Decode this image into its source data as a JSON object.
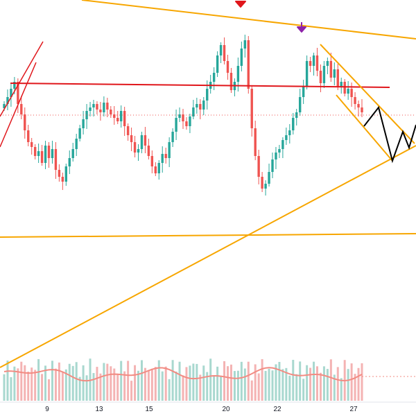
{
  "chart_data": {
    "type": "candlestick",
    "x_ticks": [
      "9",
      "13",
      "15",
      "20",
      "22",
      "27"
    ],
    "colors": {
      "up": "#26a69a",
      "down": "#ef5350",
      "volume_up": "#a8d8cf",
      "volume_down": "#f4b3b3",
      "trendline": "#f7a600",
      "resistance": "#e0161b",
      "projection": "#000000",
      "marker_top": "#e0161b",
      "marker_second": "#8e24aa",
      "volume_ma": "#f28b82",
      "last_price_line": "#ef5350"
    },
    "drawn_lines": {
      "horizontal_support": "orange",
      "horizontal_resistance": "red",
      "rising_trendline": "orange",
      "falling_trendline": "orange",
      "descending_channel": "orange",
      "zigzag_projection": "black"
    },
    "markers": [
      {
        "name": "down-arrow",
        "color": "red"
      },
      {
        "name": "down-arrow",
        "color": "purple"
      }
    ],
    "grid": false,
    "volume_panel": true
  }
}
